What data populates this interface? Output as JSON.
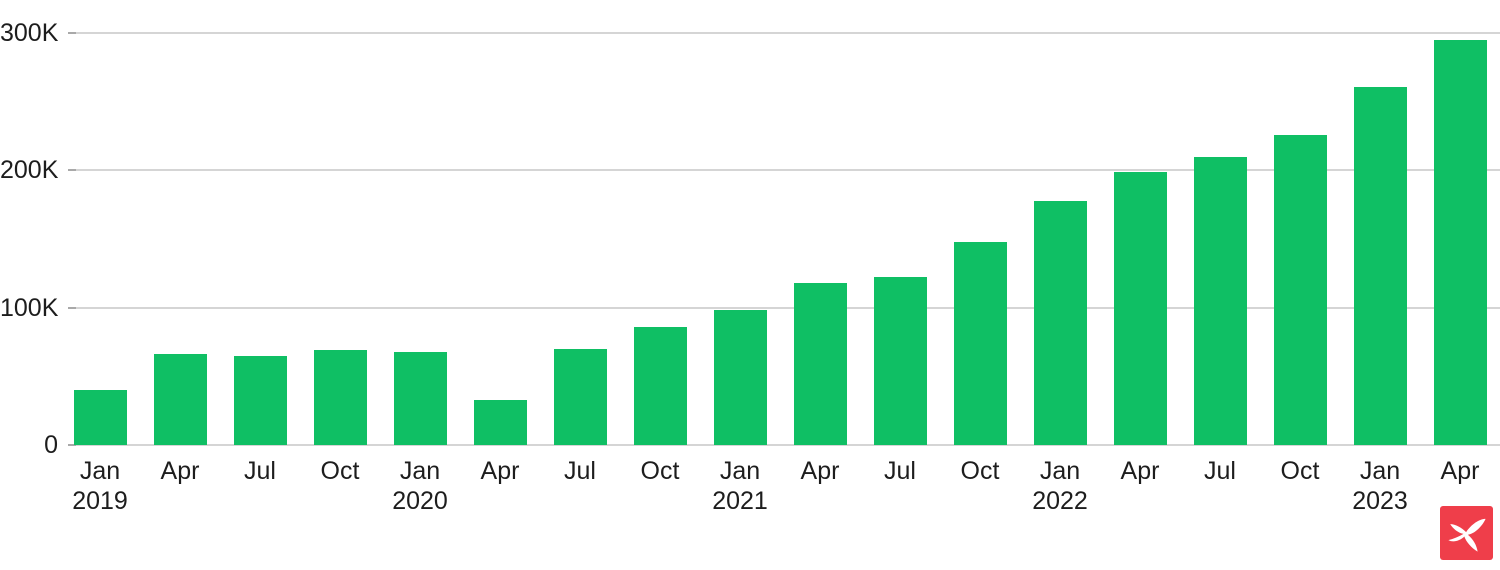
{
  "chart_data": {
    "type": "bar",
    "title": "",
    "xlabel": "",
    "ylabel": "",
    "categories": [
      "Jan 2019",
      "Apr 2019",
      "Jul 2019",
      "Oct 2019",
      "Jan 2020",
      "Apr 2020",
      "Jul 2020",
      "Oct 2020",
      "Jan 2021",
      "Apr 2021",
      "Jul 2021",
      "Oct 2021",
      "Jan 2022",
      "Apr 2022",
      "Jul 2022",
      "Oct 2022",
      "Jan 2023",
      "Apr 2023"
    ],
    "values": [
      40000,
      66000,
      65000,
      69000,
      68000,
      33000,
      70000,
      86000,
      98000,
      118000,
      122000,
      148000,
      178000,
      199000,
      210000,
      226000,
      261000,
      295000
    ],
    "x_tick_labels": [
      {
        "month": "Jan",
        "year": "2019"
      },
      {
        "month": "Apr",
        "year": ""
      },
      {
        "month": "Jul",
        "year": ""
      },
      {
        "month": "Oct",
        "year": ""
      },
      {
        "month": "Jan",
        "year": "2020"
      },
      {
        "month": "Apr",
        "year": ""
      },
      {
        "month": "Jul",
        "year": ""
      },
      {
        "month": "Oct",
        "year": ""
      },
      {
        "month": "Jan",
        "year": "2021"
      },
      {
        "month": "Apr",
        "year": ""
      },
      {
        "month": "Jul",
        "year": ""
      },
      {
        "month": "Oct",
        "year": ""
      },
      {
        "month": "Jan",
        "year": "2022"
      },
      {
        "month": "Apr",
        "year": ""
      },
      {
        "month": "Jul",
        "year": ""
      },
      {
        "month": "Oct",
        "year": ""
      },
      {
        "month": "Jan",
        "year": "2023"
      },
      {
        "month": "Apr",
        "year": ""
      }
    ],
    "y_ticks": [
      {
        "label": "0",
        "value": 0
      },
      {
        "label": "100K",
        "value": 100000
      },
      {
        "label": "200K",
        "value": 200000
      },
      {
        "label": "300K",
        "value": 300000
      }
    ],
    "ylim": [
      0,
      300000
    ],
    "grid": true,
    "legend": false,
    "bar_color": "#0fbf64",
    "gridline_color": "#d5d5d5",
    "tick_color": "#a9a9a9",
    "text_color": "#1d1d1d"
  },
  "branding": {
    "logo_name": "xm-logo",
    "logo_bg_color": "#ef3e4a",
    "logo_glyph_color": "#ffffff",
    "logo_glyph": "stylized-x"
  }
}
